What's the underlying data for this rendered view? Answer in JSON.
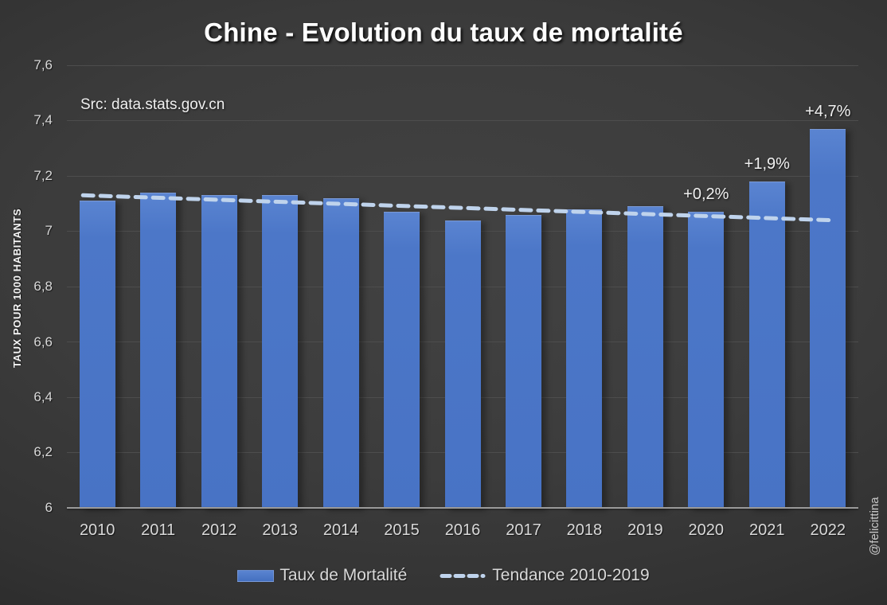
{
  "title": "Chine - Evolution du taux de mortalité",
  "source": "Src: data.stats.gov.cn",
  "watermark": "@felicittina",
  "colors": {
    "bar": "#4b76c8",
    "bar_light": "#5a84d1",
    "trend_line": "#bfd3ec",
    "gridline": "#4d4d4d",
    "axis_line": "#9a9a9a",
    "tick_text": "#d9d9d9",
    "annotation_text": "#f0f0f0",
    "title_text": "#ffffff",
    "background": "#3a3a3a"
  },
  "chart_data": {
    "type": "bar",
    "title": "Chine - Evolution du taux de mortalité",
    "xlabel": "",
    "ylabel": "TAUX POUR 1000 HABITANTS",
    "ylim": [
      6,
      7.6
    ],
    "ytick_step": 0.2,
    "ytick_labels": [
      "6",
      "6,2",
      "6,4",
      "6,6",
      "6,8",
      "7",
      "7,2",
      "7,4",
      "7,6"
    ],
    "grid": true,
    "legend_position": "bottom",
    "categories": [
      "2010",
      "2011",
      "2012",
      "2013",
      "2014",
      "2015",
      "2016",
      "2017",
      "2018",
      "2019",
      "2020",
      "2021",
      "2022"
    ],
    "series": [
      {
        "name": "Taux de Mortalité",
        "type": "bar",
        "values": [
          7.11,
          7.14,
          7.13,
          7.13,
          7.12,
          7.07,
          7.04,
          7.06,
          7.08,
          7.09,
          7.07,
          7.18,
          7.37
        ]
      },
      {
        "name": "Tendance 2010-2019",
        "type": "dashed-trend-line",
        "start_value": 7.13,
        "end_value": 7.04
      }
    ],
    "annotations": [
      {
        "category": "2020",
        "label": "+0,2%"
      },
      {
        "category": "2021",
        "label": "+1,9%"
      },
      {
        "category": "2022",
        "label": "+4,7%"
      }
    ],
    "legend": [
      "Taux de Mortalité",
      "Tendance 2010-2019"
    ]
  }
}
